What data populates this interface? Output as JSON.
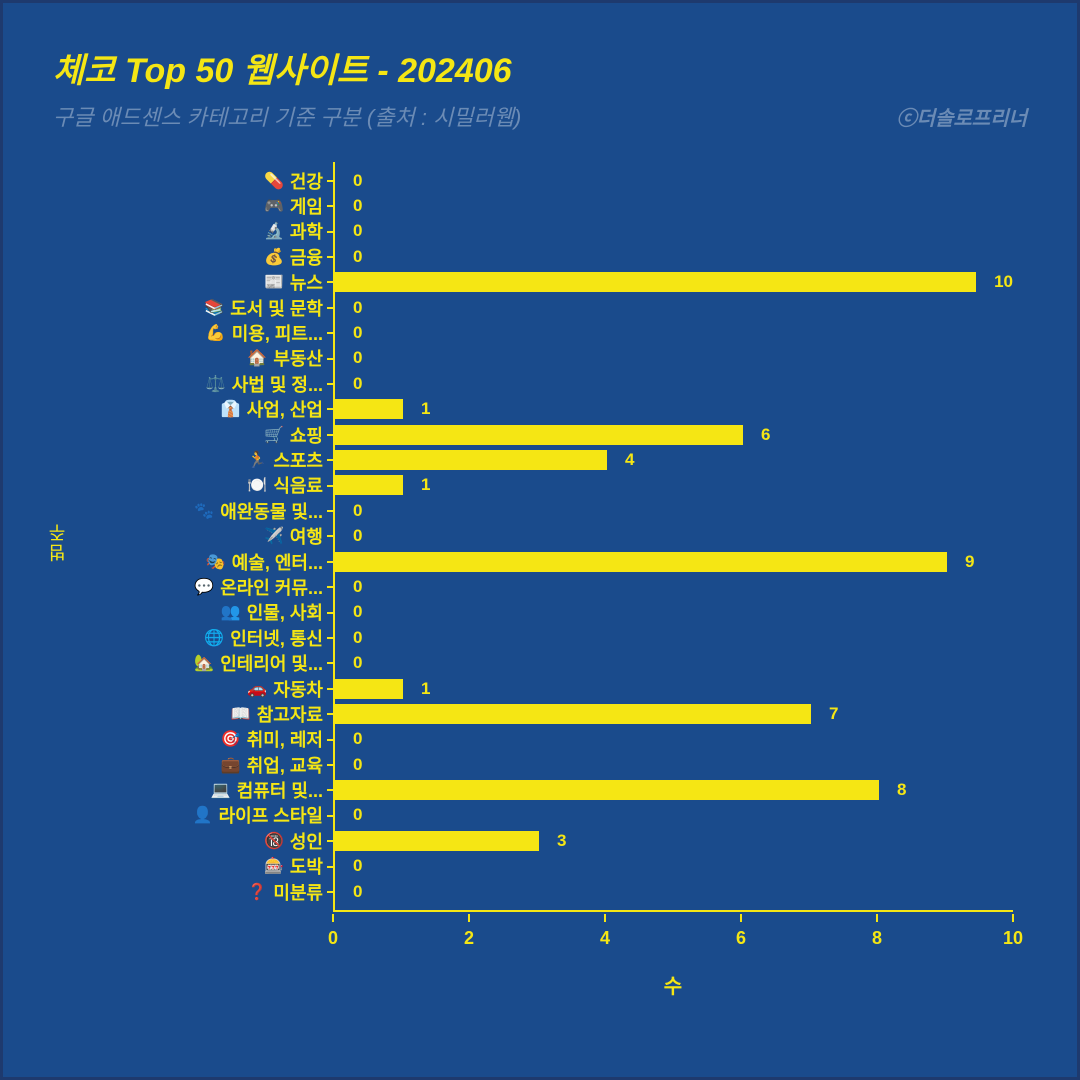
{
  "title": "체코 Top 50 웹사이트 - 202406",
  "subtitle": "구글 애드센스 카테고리 기준 구분 (출처 : 시밀러웹)",
  "credit": "ⓒ더솔로프리너",
  "yaxis_label": "범주",
  "xaxis_label": "수",
  "chart": {
    "type": "bar-horizontal",
    "xlim": [
      0,
      10
    ],
    "xticks": [
      0,
      2,
      4,
      6,
      8,
      10
    ],
    "bar_color": "#f5e614",
    "text_color": "#f5e614",
    "muted_color": "#6b8bb5",
    "background_color": "#1a4b8c",
    "border_color": "#1e3a6e",
    "label_fontsize": 18,
    "title_fontsize": 34,
    "categories": [
      {
        "icon": "💊",
        "label": "건강",
        "value": 0
      },
      {
        "icon": "🎮",
        "label": "게임",
        "value": 0
      },
      {
        "icon": "🔬",
        "label": "과학",
        "value": 0
      },
      {
        "icon": "💰",
        "label": "금융",
        "value": 0
      },
      {
        "icon": "📰",
        "label": "뉴스",
        "value": 10
      },
      {
        "icon": "📚",
        "label": "도서 및 문학",
        "value": 0
      },
      {
        "icon": "💪",
        "label": "미용, 피트...",
        "value": 0
      },
      {
        "icon": "🏠",
        "label": "부동산",
        "value": 0
      },
      {
        "icon": "⚖️",
        "label": "사법 및 정...",
        "value": 0
      },
      {
        "icon": "👔",
        "label": "사업, 산업",
        "value": 1
      },
      {
        "icon": "🛒",
        "label": "쇼핑",
        "value": 6
      },
      {
        "icon": "🏃",
        "label": "스포츠",
        "value": 4
      },
      {
        "icon": "🍽️",
        "label": "식음료",
        "value": 1
      },
      {
        "icon": "🐾",
        "label": "애완동물 및...",
        "value": 0
      },
      {
        "icon": "✈️",
        "label": "여행",
        "value": 0
      },
      {
        "icon": "🎭",
        "label": "예술, 엔터...",
        "value": 9
      },
      {
        "icon": "💬",
        "label": "온라인 커뮤...",
        "value": 0
      },
      {
        "icon": "👥",
        "label": "인물, 사회",
        "value": 0
      },
      {
        "icon": "🌐",
        "label": "인터넷, 통신",
        "value": 0
      },
      {
        "icon": "🏡",
        "label": "인테리어 및...",
        "value": 0
      },
      {
        "icon": "🚗",
        "label": "자동차",
        "value": 1
      },
      {
        "icon": "📖",
        "label": "참고자료",
        "value": 7
      },
      {
        "icon": "🎯",
        "label": "취미, 레저",
        "value": 0
      },
      {
        "icon": "💼",
        "label": "취업, 교육",
        "value": 0
      },
      {
        "icon": "💻",
        "label": "컴퓨터 및...",
        "value": 8
      },
      {
        "icon": "👤",
        "label": "라이프 스타일",
        "value": 0
      },
      {
        "icon": "🔞",
        "label": "성인",
        "value": 3
      },
      {
        "icon": "🎰",
        "label": "도박",
        "value": 0
      },
      {
        "icon": "❓",
        "label": "미분류",
        "value": 0
      }
    ]
  }
}
